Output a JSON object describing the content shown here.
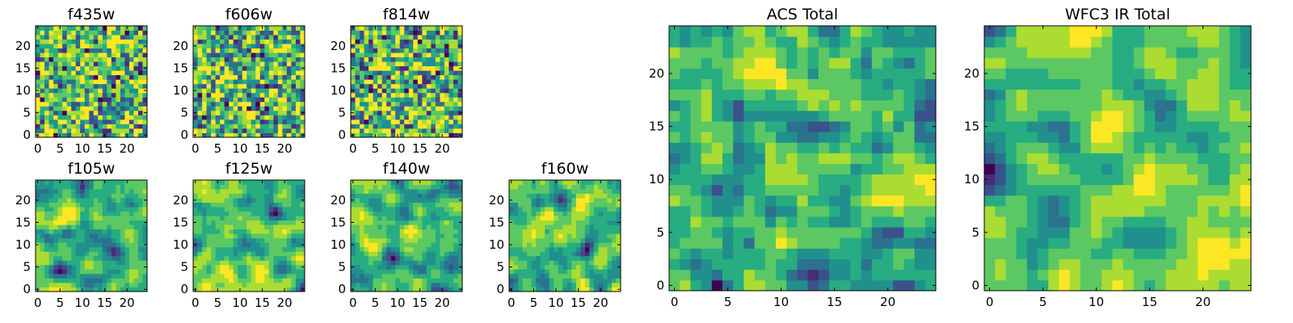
{
  "chart_data": [
    {
      "type": "heatmap",
      "title": "f435w",
      "xticks": [
        "0",
        "5",
        "10",
        "15",
        "20"
      ],
      "yticks": [
        "0",
        "5",
        "10",
        "15",
        "20"
      ],
      "xlim": [
        -0.5,
        24.5
      ],
      "ylim": [
        -0.5,
        24.5
      ],
      "colormap": "viridis",
      "texture": "fine-noise"
    },
    {
      "type": "heatmap",
      "title": "f606w",
      "xticks": [
        "0",
        "5",
        "10",
        "15",
        "20"
      ],
      "yticks": [
        "0",
        "5",
        "10",
        "15",
        "20"
      ],
      "xlim": [
        -0.5,
        24.5
      ],
      "ylim": [
        -0.5,
        24.5
      ],
      "colormap": "viridis",
      "texture": "fine-noise"
    },
    {
      "type": "heatmap",
      "title": "f814w",
      "xticks": [
        "0",
        "5",
        "10",
        "15",
        "20"
      ],
      "yticks": [
        "0",
        "5",
        "10",
        "15",
        "20"
      ],
      "xlim": [
        -0.5,
        24.5
      ],
      "ylim": [
        -0.5,
        24.5
      ],
      "colormap": "viridis",
      "texture": "fine-noise"
    },
    {
      "type": "heatmap",
      "title": "f105w",
      "xticks": [
        "0",
        "5",
        "10",
        "15",
        "20"
      ],
      "yticks": [
        "0",
        "5",
        "10",
        "15",
        "20"
      ],
      "xlim": [
        -0.5,
        24.5
      ],
      "ylim": [
        -0.5,
        24.5
      ],
      "colormap": "viridis",
      "texture": "smooth"
    },
    {
      "type": "heatmap",
      "title": "f125w",
      "xticks": [
        "0",
        "5",
        "10",
        "15",
        "20"
      ],
      "yticks": [
        "0",
        "5",
        "10",
        "15",
        "20"
      ],
      "xlim": [
        -0.5,
        24.5
      ],
      "ylim": [
        -0.5,
        24.5
      ],
      "colormap": "viridis",
      "texture": "smooth"
    },
    {
      "type": "heatmap",
      "title": "f140w",
      "xticks": [
        "0",
        "5",
        "10",
        "15",
        "20"
      ],
      "yticks": [
        "0",
        "5",
        "10",
        "15",
        "20"
      ],
      "xlim": [
        -0.5,
        24.5
      ],
      "ylim": [
        -0.5,
        24.5
      ],
      "colormap": "viridis",
      "texture": "smooth"
    },
    {
      "type": "heatmap",
      "title": "f160w",
      "xticks": [
        "0",
        "5",
        "10",
        "15",
        "20"
      ],
      "yticks": [
        "0",
        "5",
        "10",
        "15",
        "20"
      ],
      "xlim": [
        -0.5,
        24.5
      ],
      "ylim": [
        -0.5,
        24.5
      ],
      "colormap": "viridis",
      "texture": "smooth"
    },
    {
      "type": "heatmap",
      "title": "ACS Total",
      "xticks": [
        "0",
        "5",
        "10",
        "15",
        "20"
      ],
      "yticks": [
        "0",
        "5",
        "10",
        "15",
        "20"
      ],
      "xlim": [
        -0.5,
        24.5
      ],
      "ylim": [
        -0.5,
        24.5
      ],
      "colormap": "viridis",
      "texture": "medium-noise"
    },
    {
      "type": "heatmap",
      "title": "WFC3 IR Total",
      "xticks": [
        "0",
        "5",
        "10",
        "15",
        "20"
      ],
      "yticks": [
        "0",
        "5",
        "10",
        "15",
        "20"
      ],
      "xlim": [
        -0.5,
        24.5
      ],
      "ylim": [
        -0.5,
        24.5
      ],
      "colormap": "viridis",
      "texture": "smooth"
    }
  ],
  "colors": {
    "viridis": [
      "#440154",
      "#472c7a",
      "#3b518b",
      "#2c718e",
      "#21908d",
      "#27ad81",
      "#5cc863",
      "#aadc32",
      "#fde725"
    ]
  }
}
